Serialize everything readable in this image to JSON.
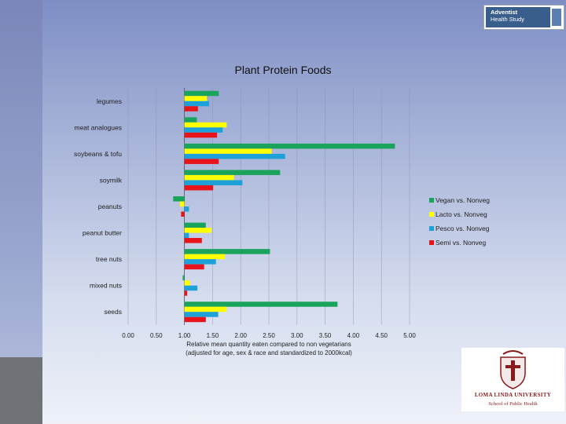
{
  "badge": {
    "line1": "Adventist",
    "line2": "Health Study"
  },
  "logo": {
    "name": "LOMA LINDA UNIVERSITY",
    "school": "School of Public Health"
  },
  "chart_data": {
    "type": "bar",
    "orientation": "horizontal",
    "title": "Plant Protein Foods",
    "xlabel_line1": "Relative mean quantity eaten compared to non vegetarians",
    "xlabel_line2": "(adjusted for age, sex & race and standardized to 2000kcal)",
    "xlim": [
      0,
      5
    ],
    "baseline": 1.0,
    "xticks": [
      "0.00",
      "0.50",
      "1.00",
      "1.50",
      "2.00",
      "2.50",
      "3.00",
      "3.50",
      "4.00",
      "4.50",
      "5.00"
    ],
    "categories": [
      "legumes",
      "meat analogues",
      "soybeans & tofu",
      "soymilk",
      "peanuts",
      "peanut butter",
      "tree nuts",
      "mixed nuts",
      "seeds"
    ],
    "series": [
      {
        "name": "Vegan vs. Nonveg",
        "color": "#1aa35a",
        "values": [
          1.61,
          1.22,
          4.74,
          2.7,
          0.8,
          1.38,
          2.52,
          0.97,
          3.72
        ]
      },
      {
        "name": "Lacto vs. Nonveg",
        "color": "#ffff00",
        "values": [
          1.4,
          1.75,
          2.55,
          1.88,
          0.92,
          1.48,
          1.72,
          1.1,
          1.75
        ]
      },
      {
        "name": "Pesco vs. Nonveg",
        "color": "#1ea0d8",
        "values": [
          1.44,
          1.68,
          2.79,
          2.03,
          1.08,
          1.08,
          1.56,
          1.23,
          1.6
        ]
      },
      {
        "name": "Semi vs. Nonveg",
        "color": "#e8141c",
        "values": [
          1.24,
          1.58,
          1.61,
          1.51,
          0.94,
          1.31,
          1.35,
          1.05,
          1.38
        ]
      }
    ],
    "legend_position": "right",
    "grid": true
  }
}
